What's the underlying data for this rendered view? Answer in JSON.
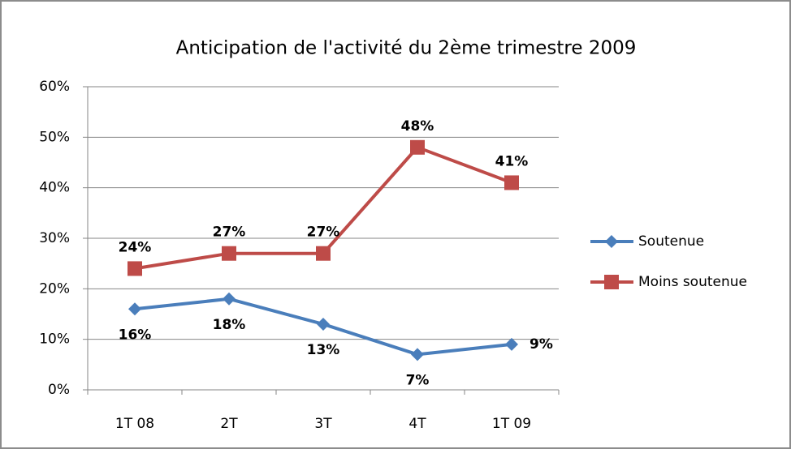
{
  "chart_data": {
    "type": "line",
    "title": "Anticipation de l'activité du 2ème trimestre 2009",
    "categories": [
      "1T 08",
      "2T",
      "3T",
      "4T",
      "1T 09"
    ],
    "series": [
      {
        "name": "Soutenue",
        "color": "#4a7ebb",
        "values": [
          16,
          18,
          13,
          7,
          9
        ],
        "value_labels": [
          "16%",
          "18%",
          "13%",
          "7%",
          "9%"
        ]
      },
      {
        "name": "Moins soutenue",
        "color": "#be4b48",
        "values": [
          24,
          27,
          27,
          48,
          41
        ],
        "value_labels": [
          "24%",
          "27%",
          "27%",
          "48%",
          "41%"
        ]
      }
    ],
    "ylim": [
      0,
      60
    ],
    "yticks": [
      {
        "value": 0,
        "label": "0%"
      },
      {
        "value": 10,
        "label": "10%"
      },
      {
        "value": 20,
        "label": "20%"
      },
      {
        "value": 30,
        "label": "30%"
      },
      {
        "value": 40,
        "label": "40%"
      },
      {
        "value": 50,
        "label": "50%"
      },
      {
        "value": 60,
        "label": "60%"
      }
    ],
    "grid": true,
    "legend": "right"
  }
}
